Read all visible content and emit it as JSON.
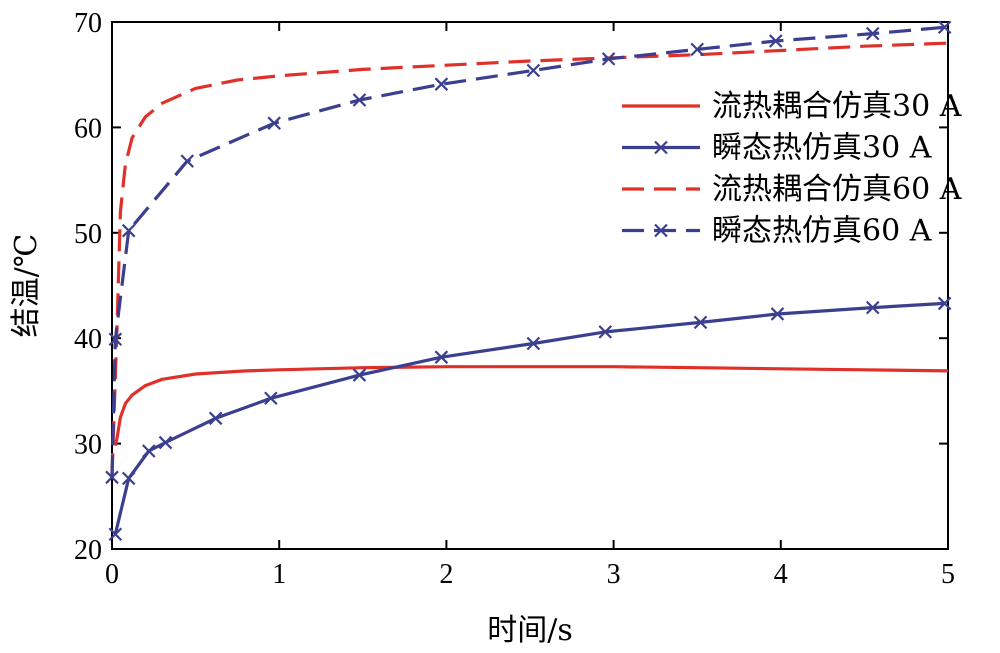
{
  "chart_data": {
    "type": "line",
    "xlabel": "时间/s",
    "ylabel": "结温/℃",
    "xlim": [
      0,
      5
    ],
    "ylim": [
      20,
      70
    ],
    "xticks": [
      "0",
      "1",
      "2",
      "3",
      "4",
      "5"
    ],
    "yticks": [
      "20",
      "30",
      "40",
      "50",
      "60",
      "70"
    ],
    "grid": false,
    "legend_position": "top-right",
    "series": [
      {
        "name": "流热耦合仿真30 A",
        "color": "#e0302a",
        "style": "solid",
        "marker": "none",
        "x": [
          0.02,
          0.03,
          0.05,
          0.08,
          0.12,
          0.2,
          0.3,
          0.5,
          0.8,
          1.0,
          1.5,
          2.0,
          2.5,
          3.0,
          3.5,
          4.0,
          4.5,
          5.0
        ],
        "y": [
          29.8,
          30.5,
          32.5,
          33.8,
          34.6,
          35.5,
          36.1,
          36.6,
          36.9,
          37.0,
          37.2,
          37.3,
          37.3,
          37.3,
          37.2,
          37.1,
          37.0,
          36.9
        ]
      },
      {
        "name": "瞬态热仿真30 A",
        "color": "#3b3f8f",
        "style": "solid",
        "marker": "x",
        "x": [
          0.02,
          0.1,
          0.22,
          0.32,
          0.62,
          0.95,
          1.48,
          1.97,
          2.52,
          2.95,
          3.52,
          3.98,
          4.55,
          4.98
        ],
        "y": [
          21.4,
          26.7,
          29.3,
          30.1,
          32.4,
          34.3,
          36.5,
          38.2,
          39.5,
          40.6,
          41.5,
          42.3,
          42.9,
          43.3
        ]
      },
      {
        "name": "流热耦合仿真60 A",
        "color": "#e0302a",
        "style": "dashed",
        "marker": "none",
        "x": [
          0.0,
          0.03,
          0.05,
          0.08,
          0.12,
          0.2,
          0.3,
          0.5,
          0.75,
          1.0,
          1.5,
          2.0,
          2.5,
          3.0,
          3.5,
          4.0,
          4.5,
          5.0
        ],
        "y": [
          27.0,
          41.0,
          52.0,
          56.5,
          59.0,
          61.0,
          62.3,
          63.7,
          64.5,
          64.9,
          65.5,
          65.9,
          66.3,
          66.6,
          66.9,
          67.3,
          67.7,
          68.0
        ]
      },
      {
        "name": "瞬态热仿真60 A",
        "color": "#3b3f8f",
        "style": "dashed",
        "marker": "x",
        "x": [
          0.0,
          0.02,
          0.1,
          0.45,
          0.97,
          1.48,
          1.97,
          2.52,
          2.97,
          3.5,
          3.97,
          4.55,
          4.98
        ],
        "y": [
          26.8,
          39.9,
          50.2,
          56.8,
          60.4,
          62.6,
          64.1,
          65.4,
          66.5,
          67.4,
          68.2,
          68.9,
          69.5
        ]
      }
    ]
  }
}
